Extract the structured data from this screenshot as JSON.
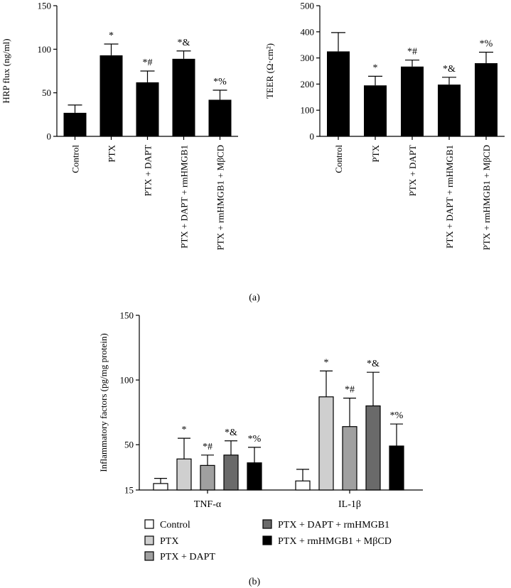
{
  "chart_data": [
    {
      "id": "hrp",
      "type": "bar",
      "ylabel": "HRP flux (ng/ml)",
      "ylim": [
        0,
        150
      ],
      "yticks": [
        0,
        50,
        100,
        150
      ],
      "categories": [
        "Control",
        "PTX",
        "PTX + DAPT",
        "PTX + DAPT + rmHMGB1",
        "PTX + rmHMGB1 + MβCD"
      ],
      "values": [
        27,
        93,
        62,
        89,
        42
      ],
      "errors": [
        9,
        13,
        13,
        9,
        11
      ],
      "annotations": [
        "",
        "*",
        "*#",
        "*&",
        "*%"
      ],
      "color": "#000000"
    },
    {
      "id": "teer",
      "type": "bar",
      "ylabel": "TEER (Ω·cm²)",
      "ylim": [
        0,
        500
      ],
      "yticks": [
        0,
        100,
        200,
        300,
        400,
        500
      ],
      "categories": [
        "Control",
        "PTX",
        "PTX + DAPT",
        "PTX + DAPT + rmHMGB1",
        "PTX + rmHMGB1 + MβCD"
      ],
      "values": [
        325,
        195,
        267,
        198,
        280
      ],
      "errors": [
        72,
        35,
        25,
        28,
        42
      ],
      "annotations": [
        "",
        "*",
        "*#",
        "*&",
        "*%"
      ],
      "color": "#000000"
    },
    {
      "id": "inflam",
      "type": "bar",
      "ylabel": "Inflammatory factors (pg/mg protein)",
      "ylim": [
        15,
        150
      ],
      "yticks": [
        15,
        50,
        100,
        150
      ],
      "categories": [
        "TNF-α",
        "IL-1β"
      ],
      "series": [
        {
          "name": "Control",
          "color": "#ffffff",
          "values": [
            20,
            22
          ],
          "errors": [
            4,
            9
          ],
          "annotation": ""
        },
        {
          "name": "PTX",
          "color": "#cfcfcf",
          "values": [
            39,
            87
          ],
          "errors": [
            16,
            20
          ],
          "annotation": "*"
        },
        {
          "name": "PTX + DAPT",
          "color": "#a0a0a0",
          "values": [
            34,
            64
          ],
          "errors": [
            8,
            22
          ],
          "annotation": "*#"
        },
        {
          "name": "PTX + DAPT + rmHMGB1",
          "color": "#6a6a6a",
          "values": [
            42,
            80
          ],
          "errors": [
            11,
            26
          ],
          "annotation": "*&"
        },
        {
          "name": "PTX + rmHMGB1 + MβCD",
          "color": "#000000",
          "values": [
            36,
            49
          ],
          "errors": [
            12,
            17
          ],
          "annotation": "*%"
        }
      ]
    }
  ],
  "captions": {
    "a": "(a)",
    "b": "(b)"
  }
}
